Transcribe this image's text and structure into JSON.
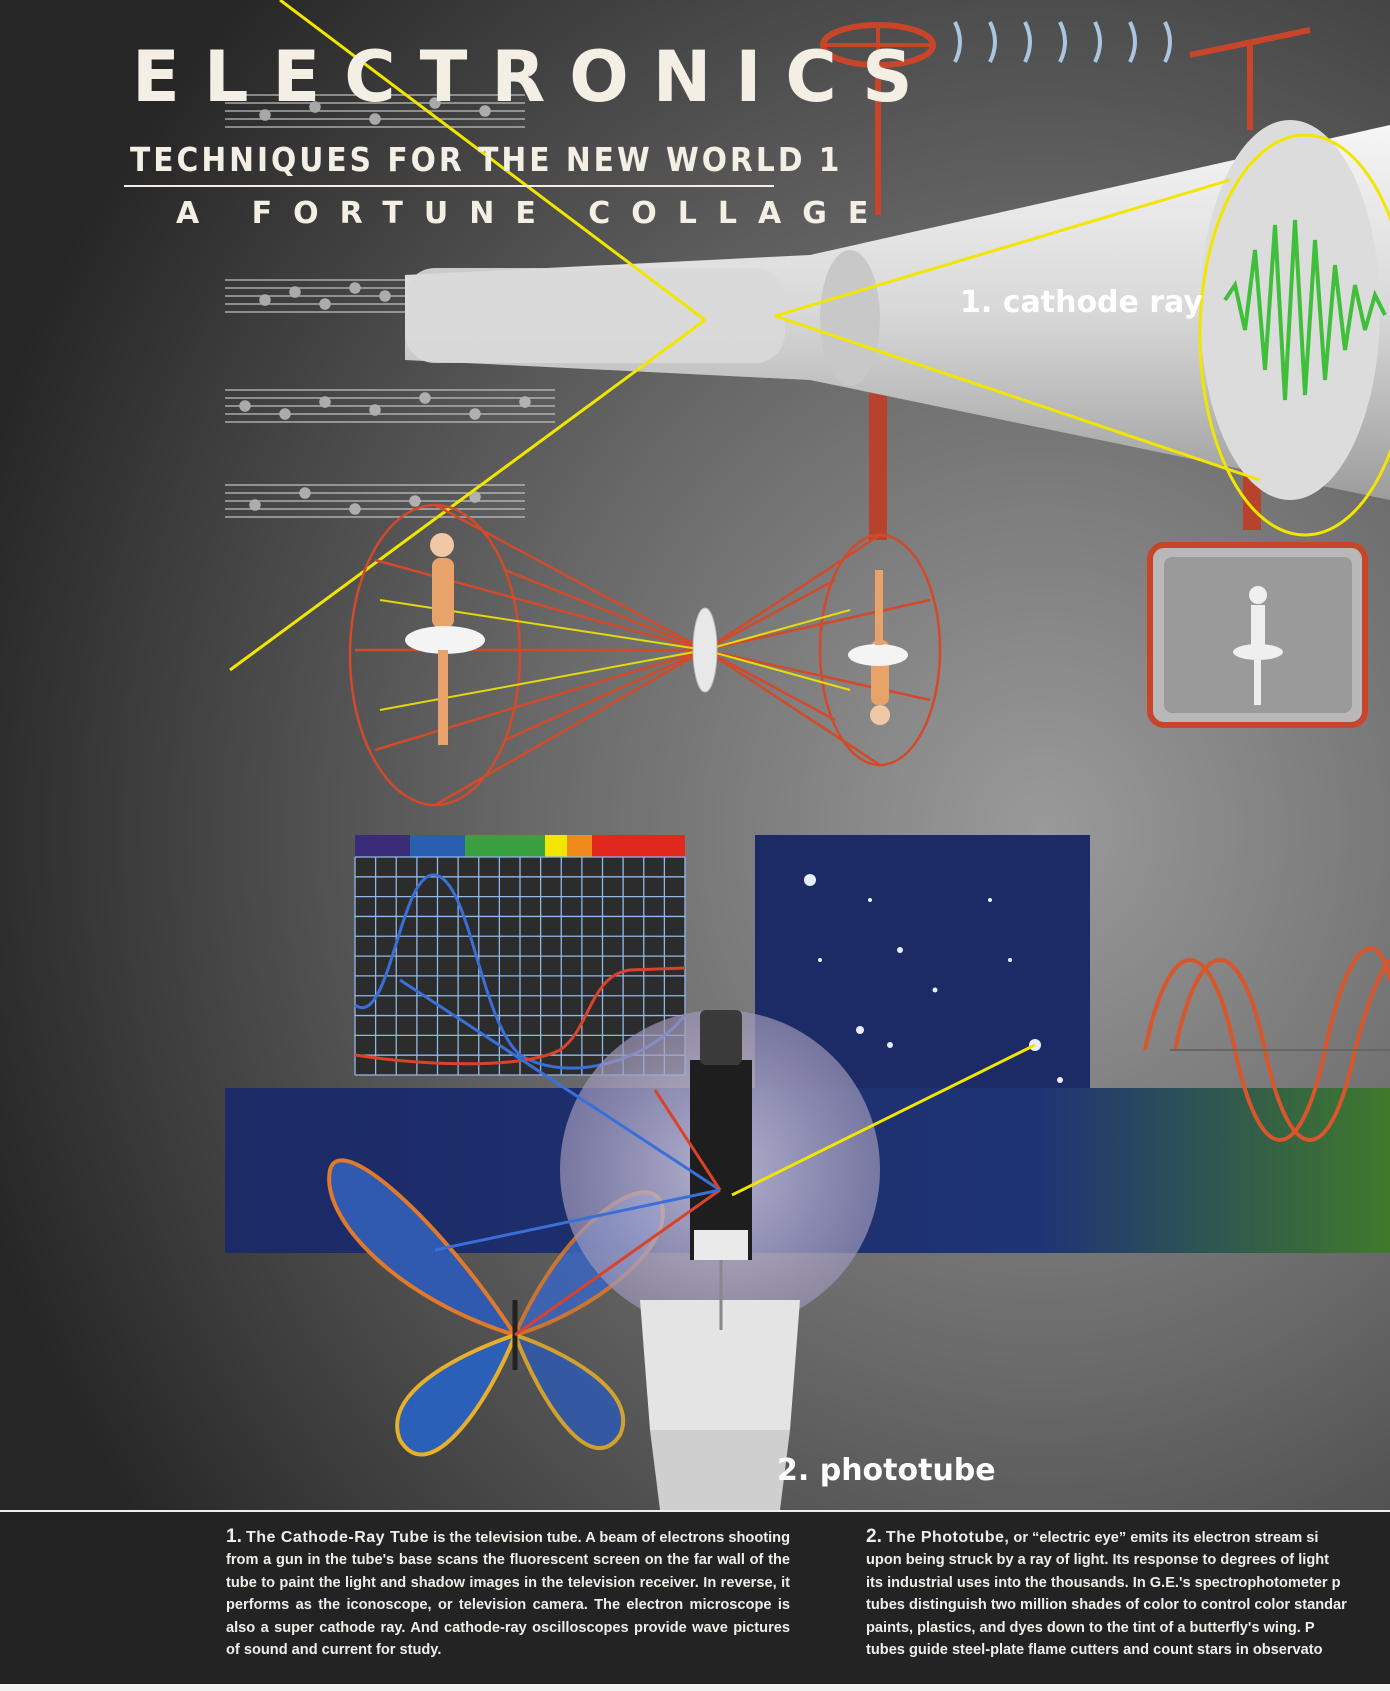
{
  "title": {
    "main": "ELECTRONICS",
    "subtitle": "TECHNIQUES FOR THE NEW WORLD 1",
    "collage": "A FORTUNE COLLAGE"
  },
  "labels": {
    "cathode_ray": "1. cathode ray",
    "phototube": "2. phototube"
  },
  "captions": {
    "item1": {
      "number": "1.",
      "heading": "The Cathode-Ray Tube",
      "body": " is the television tube. A beam of electrons shooting from a gun in the tube's base scans the fluorescent screen on the far wall of the tube to paint the light and shadow images in the television receiver. In reverse, it performs as the iconoscope, or television camera. The electron microscope is also a super cathode ray. And cathode-ray oscilloscopes provide wave pictures of sound and current for study."
    },
    "item2": {
      "number": "2.",
      "heading": "The Phototube,",
      "lines": [
        " or “electric eye” emits its electron stream si",
        "upon being struck by a ray of light. Its response to degrees of light",
        "its industrial uses into the thousands. In G.E.'s spectrophotometer p",
        "tubes distinguish two million shades of color to control color standar",
        "paints, plastics, and dyes down to the tint of a butterfly's wing. P",
        "tubes guide steel-plate flame cutters and count stars in observato"
      ]
    }
  },
  "colors": {
    "background_dark": "#2b2b2b",
    "beam_yellow": "#f2e600",
    "wire_red": "#d2452a",
    "wave_green": "#3fbf3a",
    "night_sky": "#1c2a66",
    "caption_band": "#232323"
  }
}
